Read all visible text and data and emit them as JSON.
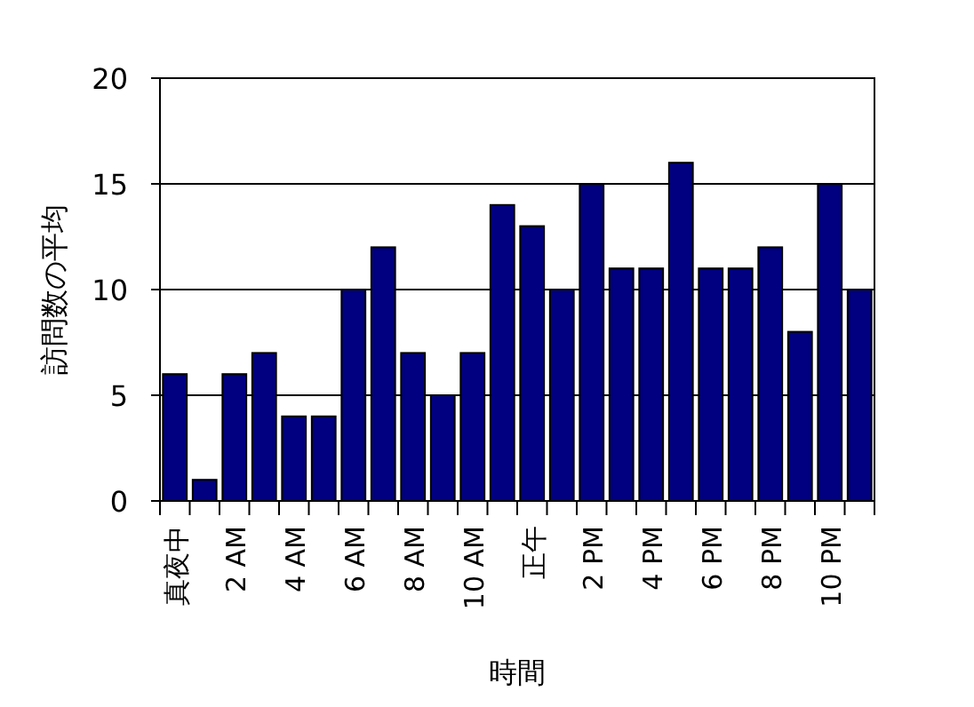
{
  "chart_data": {
    "type": "bar",
    "xlabel": "時間",
    "ylabel": "訪問数の平均",
    "categories": [
      "真夜中",
      null,
      "2 AM",
      null,
      "4 AM",
      null,
      "6 AM",
      null,
      "8 AM",
      null,
      "10 AM",
      null,
      "正午",
      null,
      "2 PM",
      null,
      "4 PM",
      null,
      "6 PM",
      null,
      "8 PM",
      null,
      "10 PM",
      null
    ],
    "values": [
      6,
      1,
      6,
      7,
      4,
      4,
      10,
      12,
      7,
      5,
      7,
      14,
      13,
      10,
      15,
      11,
      11,
      16,
      11,
      11,
      12,
      8,
      15,
      10
    ],
    "color": "#000080",
    "ylim": [
      0,
      20
    ],
    "yticks": [
      0,
      5,
      10,
      15,
      20
    ],
    "grid": "y"
  }
}
